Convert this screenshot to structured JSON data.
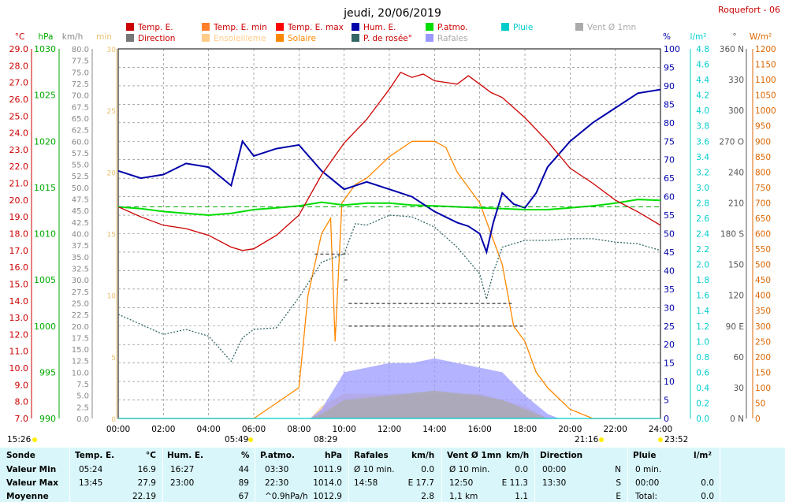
{
  "header": {
    "title": "jeudi, 20/06/2019",
    "station": "Roquefort - 06"
  },
  "legend": [
    {
      "label": "Temp. E.",
      "color": "#cc0000"
    },
    {
      "label": "Temp. E. min",
      "color": "#ff7f2a"
    },
    {
      "label": "Temp. E. max",
      "color": "#ff0000"
    },
    {
      "label": "Hum. E.",
      "color": "#0000aa"
    },
    {
      "label": "P.atmo.",
      "color": "#00dd00"
    },
    {
      "label": "Pluie",
      "color": "#00cccc"
    },
    {
      "label": "Vent Ø 1mn",
      "color": "#aaaaaa"
    },
    {
      "label": "Direction",
      "color": "#777777"
    },
    {
      "label": "Ensoleilleme",
      "color": "#ffcc88"
    },
    {
      "label": "Solaire",
      "color": "#ff8800"
    },
    {
      "label": "P. de rosée°",
      "color": "#336666"
    },
    {
      "label": "Rafales",
      "color": "#9999ff"
    }
  ],
  "axes": {
    "temp": {
      "unit": "°C",
      "ticks": [
        "29.0",
        "28.0",
        "27.0",
        "26.0",
        "25.0",
        "24.0",
        "23.0",
        "22.0",
        "21.0",
        "20.0",
        "19.0",
        "18.0",
        "17.0",
        "16.0",
        "15.0",
        "14.0",
        "13.0",
        "12.0",
        "11.0",
        "10.0",
        "9.0",
        "8.0",
        "7.0"
      ],
      "color": "#cc0000"
    },
    "press": {
      "unit": "hPa",
      "ticks": [
        "1030",
        "1025",
        "1020",
        "1015",
        "1010",
        "1005",
        "1000",
        "995",
        "990"
      ],
      "color": "#00aa00"
    },
    "wind": {
      "unit": "km/h",
      "ticks": [
        "80.0",
        "77.5",
        "75.0",
        "72.5",
        "70.0",
        "67.5",
        "65.0",
        "62.5",
        "60.0",
        "57.5",
        "55.0",
        "52.5",
        "50.0",
        "47.5",
        "45.0",
        "42.5",
        "40.0",
        "37.5",
        "35.0",
        "32.5",
        "30.0",
        "27.5",
        "25.0",
        "22.5",
        "20.0",
        "17.5",
        "15.0",
        "12.5",
        "10.0",
        "7.5",
        "5.0",
        "2.5",
        "0.0"
      ],
      "color": "#888888"
    },
    "sun": {
      "unit": "min",
      "ticks": [
        "30",
        "25",
        "20",
        "15",
        "10",
        "5",
        "0"
      ],
      "color": "#e8c070"
    },
    "hum": {
      "unit": "%",
      "ticks": [
        "100",
        "95",
        "90",
        "85",
        "80",
        "75",
        "70",
        "65",
        "60",
        "55",
        "50",
        "45",
        "40",
        "35",
        "30",
        "25",
        "20",
        "15",
        "10",
        "5",
        "0"
      ],
      "color": "#0000aa"
    },
    "rain": {
      "unit": "l/m²",
      "ticks": [
        "4.8",
        "4.6",
        "4.4",
        "4.2",
        "4.0",
        "3.8",
        "3.6",
        "3.4",
        "3.2",
        "3.0",
        "2.8",
        "2.6",
        "2.4",
        "2.2",
        "2.0",
        "1.8",
        "1.6",
        "1.4",
        "1.2",
        "1.0",
        "0.8",
        "0.6",
        "0.4",
        "0.2",
        "0.0"
      ],
      "color": "#00cccc"
    },
    "dir": {
      "unit": "°",
      "ticks": [
        "360 N",
        "330",
        "300",
        "270 O",
        "240",
        "210",
        "180 S",
        "150",
        "120",
        "90 E",
        "60",
        "30",
        "0 N"
      ],
      "color": "#555555"
    },
    "solar": {
      "unit": "W/m²",
      "ticks": [
        "1200",
        "1150",
        "1100",
        "1050",
        "1000",
        "950",
        "900",
        "850",
        "800",
        "750",
        "700",
        "650",
        "600",
        "550",
        "500",
        "450",
        "400",
        "350",
        "300",
        "250",
        "200",
        "150",
        "100",
        "50",
        "0"
      ],
      "color": "#dd6600"
    },
    "time": {
      "ticks": [
        "00:00",
        "02:00",
        "04:00",
        "06:00",
        "08:00",
        "10:00",
        "12:00",
        "14:00",
        "16:00",
        "18:00",
        "20:00",
        "22:00",
        "24:00"
      ]
    }
  },
  "events": {
    "moon_rise": "15:26",
    "sunrise": "05:49",
    "solar_start": "08:29",
    "sunset": "21:16",
    "moon_set": "23:52"
  },
  "chart_data": {
    "type": "line",
    "title": "jeudi, 20/06/2019",
    "x_unit": "hour",
    "xlim": [
      0,
      24
    ],
    "series": [
      {
        "name": "Temp. E.",
        "axis": "°C",
        "points": [
          [
            0,
            19.6
          ],
          [
            1,
            19.0
          ],
          [
            2,
            18.5
          ],
          [
            3,
            18.3
          ],
          [
            4,
            17.9
          ],
          [
            5,
            17.2
          ],
          [
            5.5,
            17.0
          ],
          [
            6,
            17.1
          ],
          [
            7,
            17.9
          ],
          [
            8,
            19.1
          ],
          [
            9,
            21.5
          ],
          [
            10,
            23.4
          ],
          [
            11,
            24.8
          ],
          [
            12,
            26.6
          ],
          [
            12.5,
            27.6
          ],
          [
            13,
            27.3
          ],
          [
            13.5,
            27.5
          ],
          [
            14,
            27.1
          ],
          [
            14.5,
            27.0
          ],
          [
            15,
            26.9
          ],
          [
            15.5,
            27.4
          ],
          [
            16,
            26.9
          ],
          [
            16.5,
            26.4
          ],
          [
            17,
            26.1
          ],
          [
            18,
            24.9
          ],
          [
            19,
            23.5
          ],
          [
            20,
            21.9
          ],
          [
            21,
            21.0
          ],
          [
            22,
            20.0
          ],
          [
            23,
            19.3
          ],
          [
            24,
            18.5
          ]
        ]
      },
      {
        "name": "Hum. E.",
        "axis": "%",
        "points": [
          [
            0,
            67
          ],
          [
            1,
            65
          ],
          [
            2,
            66
          ],
          [
            3,
            69
          ],
          [
            4,
            68
          ],
          [
            5,
            63
          ],
          [
            5.5,
            75
          ],
          [
            6,
            71
          ],
          [
            7,
            73
          ],
          [
            8,
            74
          ],
          [
            9,
            67
          ],
          [
            10,
            62
          ],
          [
            11,
            64
          ],
          [
            12,
            62
          ],
          [
            13,
            60
          ],
          [
            14,
            56
          ],
          [
            15,
            53
          ],
          [
            15.5,
            52
          ],
          [
            16,
            50
          ],
          [
            16.3,
            45
          ],
          [
            16.6,
            53
          ],
          [
            17,
            61
          ],
          [
            17.5,
            58
          ],
          [
            18,
            57
          ],
          [
            18.5,
            61
          ],
          [
            19,
            68
          ],
          [
            20,
            75
          ],
          [
            21,
            80
          ],
          [
            22,
            84
          ],
          [
            23,
            88
          ],
          [
            24,
            89
          ]
        ]
      },
      {
        "name": "P.atmo.",
        "axis": "hPa",
        "points": [
          [
            0,
            1012.9
          ],
          [
            1,
            1012.7
          ],
          [
            2,
            1012.4
          ],
          [
            3,
            1012.2
          ],
          [
            4,
            1012.0
          ],
          [
            5,
            1012.2
          ],
          [
            6,
            1012.6
          ],
          [
            7,
            1012.8
          ],
          [
            8,
            1013.0
          ],
          [
            9,
            1013.4
          ],
          [
            10,
            1013.1
          ],
          [
            11,
            1013.3
          ],
          [
            12,
            1013.3
          ],
          [
            13,
            1013.1
          ],
          [
            14,
            1013.0
          ],
          [
            15,
            1012.9
          ],
          [
            16,
            1012.8
          ],
          [
            17,
            1012.7
          ],
          [
            18,
            1012.6
          ],
          [
            19,
            1012.6
          ],
          [
            20,
            1012.8
          ],
          [
            21,
            1013.0
          ],
          [
            22,
            1013.3
          ],
          [
            23,
            1013.7
          ],
          [
            24,
            1013.6
          ]
        ]
      },
      {
        "name": "P. de rosée°",
        "axis": "°C",
        "points": [
          [
            0,
            13.2
          ],
          [
            1,
            12.6
          ],
          [
            2,
            12.0
          ],
          [
            3,
            12.3
          ],
          [
            4,
            11.9
          ],
          [
            5,
            10.4
          ],
          [
            5.5,
            11.8
          ],
          [
            6,
            12.3
          ],
          [
            7,
            12.4
          ],
          [
            8,
            14.2
          ],
          [
            9,
            16.3
          ],
          [
            10,
            16.8
          ],
          [
            10.5,
            18.6
          ],
          [
            11,
            18.5
          ],
          [
            12,
            19.1
          ],
          [
            13,
            19.0
          ],
          [
            14,
            18.4
          ],
          [
            15,
            17.2
          ],
          [
            16,
            15.6
          ],
          [
            16.3,
            14.1
          ],
          [
            16.6,
            15.7
          ],
          [
            17,
            17.2
          ],
          [
            18,
            17.6
          ],
          [
            19,
            17.6
          ],
          [
            20,
            17.7
          ],
          [
            21,
            17.7
          ],
          [
            22,
            17.5
          ],
          [
            23,
            17.4
          ],
          [
            24,
            17.0
          ]
        ]
      },
      {
        "name": "Solaire",
        "axis": "W/m²",
        "points": [
          [
            0,
            0
          ],
          [
            6,
            0
          ],
          [
            7,
            50
          ],
          [
            8,
            100
          ],
          [
            8.4,
            400
          ],
          [
            9,
            600
          ],
          [
            9.4,
            650
          ],
          [
            9.6,
            250
          ],
          [
            9.9,
            700
          ],
          [
            10.5,
            760
          ],
          [
            11,
            780
          ],
          [
            12,
            850
          ],
          [
            13,
            900
          ],
          [
            14,
            900
          ],
          [
            14.5,
            880
          ],
          [
            15,
            800
          ],
          [
            15.5,
            750
          ],
          [
            16,
            700
          ],
          [
            16.5,
            600
          ],
          [
            17,
            500
          ],
          [
            17.5,
            300
          ],
          [
            18,
            250
          ],
          [
            18.5,
            150
          ],
          [
            19,
            100
          ],
          [
            20,
            30
          ],
          [
            21,
            0
          ],
          [
            24,
            0
          ]
        ]
      },
      {
        "name": "Rafales",
        "axis": "km/h",
        "points": [
          [
            0,
            0
          ],
          [
            8.5,
            0
          ],
          [
            9,
            2
          ],
          [
            10,
            10
          ],
          [
            12,
            12
          ],
          [
            13,
            12
          ],
          [
            14,
            13
          ],
          [
            15,
            12
          ],
          [
            16,
            11
          ],
          [
            17,
            10
          ],
          [
            18,
            5
          ],
          [
            19,
            1
          ],
          [
            19.5,
            0
          ],
          [
            24,
            0
          ]
        ]
      },
      {
        "name": "Vent Ø 1mn",
        "axis": "km/h",
        "points": [
          [
            0,
            0
          ],
          [
            8.5,
            0
          ],
          [
            9,
            1
          ],
          [
            10,
            4
          ],
          [
            12,
            5
          ],
          [
            14,
            6
          ],
          [
            16,
            5
          ],
          [
            17,
            4
          ],
          [
            18,
            2
          ],
          [
            19,
            0
          ],
          [
            24,
            0
          ]
        ]
      },
      {
        "name": "Ensoleilleme",
        "axis": "min",
        "points": [
          [
            0,
            0
          ],
          [
            8.5,
            0
          ],
          [
            9,
            1
          ],
          [
            10,
            2
          ],
          [
            12,
            2
          ],
          [
            14,
            2
          ],
          [
            16,
            2
          ],
          [
            17,
            1.5
          ],
          [
            18,
            1
          ],
          [
            19,
            0
          ],
          [
            24,
            0
          ]
        ]
      },
      {
        "name": "Pluie",
        "axis": "l/m²",
        "points": [
          [
            0,
            0
          ],
          [
            24,
            0
          ]
        ]
      }
    ],
    "direction_segments": [
      {
        "deg": 160,
        "from": 8.7,
        "to": 10.2
      },
      {
        "deg": 135,
        "from": 10.0,
        "to": 10.2
      },
      {
        "deg": 112,
        "from": 10.2,
        "to": 17.5
      },
      {
        "deg": 90,
        "from": 10.2,
        "to": 18.0
      }
    ]
  },
  "summary": {
    "headers": [
      "Sonde",
      "Temp. E.",
      "°C",
      "Hum. E.",
      "%",
      "P.atmo.",
      "hPa",
      "Rafales",
      "km/h",
      "Vent Ø 1mn",
      "km/h",
      "Direction",
      "Pluie",
      "l/m²"
    ],
    "rows": [
      {
        "label": "Valeur Min",
        "temp_time": "05:24",
        "temp": "16.9",
        "hum_time": "16:27",
        "hum": "44",
        "press_time": "03:30",
        "press": "1011.9",
        "gust_time": "Ø 10 min.",
        "gust": "0.0",
        "wind_time": "Ø 10 min.",
        "wind": "0.0",
        "dir_time": "00:00",
        "dir": "N",
        "rain_time": "0 min.",
        "rain": ""
      },
      {
        "label": "Valeur Max",
        "temp_time": "13:45",
        "temp": "27.9",
        "hum_time": "23:00",
        "hum": "89",
        "press_time": "22:30",
        "press": "1014.0",
        "gust_time": "14:58",
        "gust": "E 17.7",
        "wind_time": "12:50",
        "wind": "E 11.3",
        "dir_time": "13:30",
        "dir": "S",
        "rain_time": "00:00",
        "rain": "0.0"
      },
      {
        "label": "Moyenne",
        "temp_time": "",
        "temp": "22.19",
        "hum_time": "",
        "hum": "67",
        "press_time": "^0.9hPa/h",
        "press": "1012.9",
        "gust_time": "",
        "gust": "2.8",
        "wind_time": "1,1 km",
        "wind": "1.1",
        "dir_time": "",
        "dir": "E",
        "rain_time": "Total:",
        "rain": "0.0"
      }
    ]
  }
}
